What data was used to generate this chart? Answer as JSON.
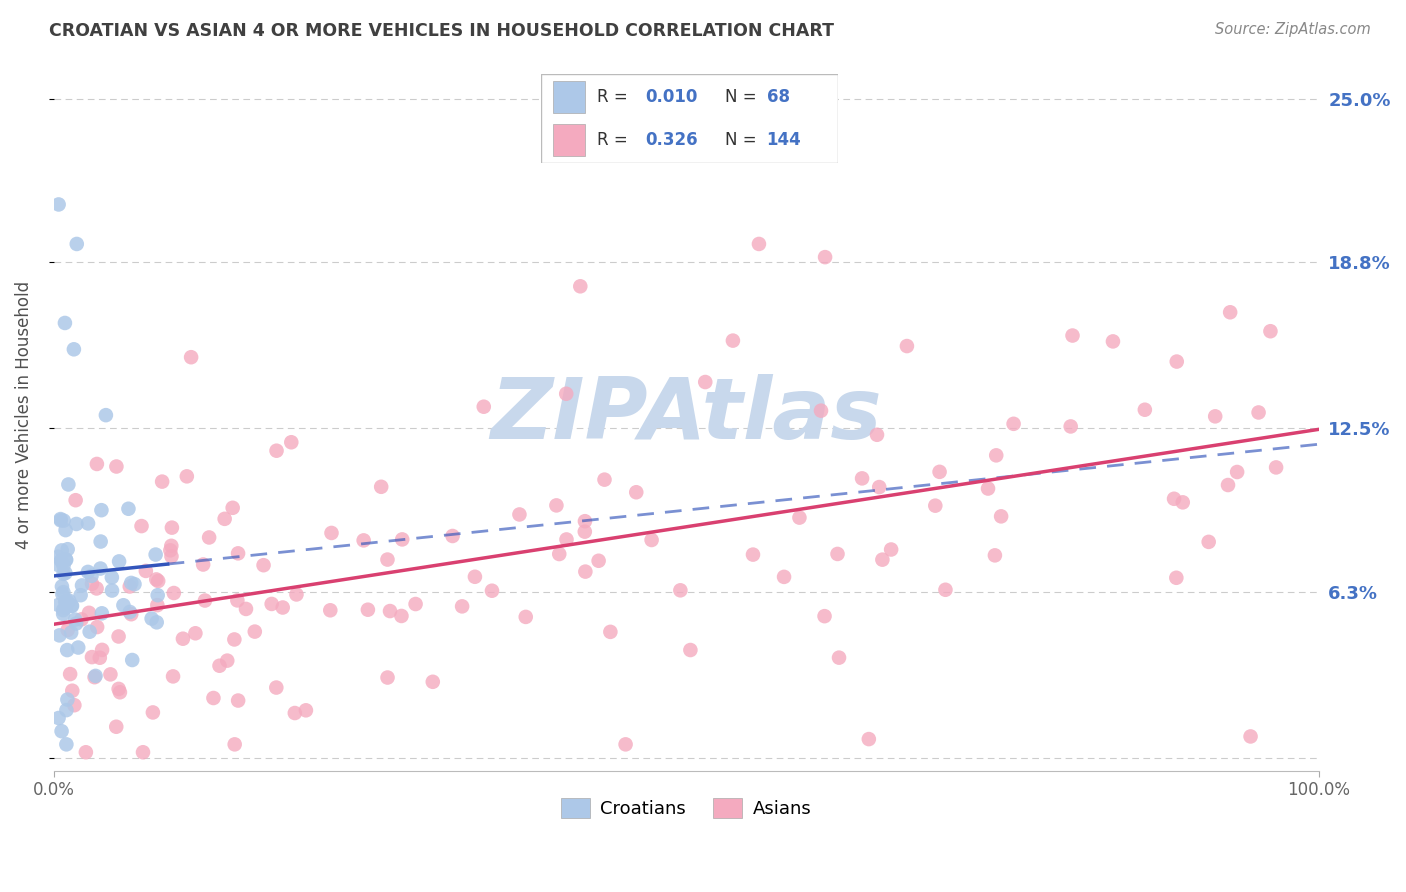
{
  "title": "CROATIAN VS ASIAN 4 OR MORE VEHICLES IN HOUSEHOLD CORRELATION CHART",
  "source": "Source: ZipAtlas.com",
  "ylabel": "4 or more Vehicles in Household",
  "xlim": [
    0,
    1
  ],
  "ylim": [
    -0.005,
    0.265
  ],
  "ytick_vals": [
    0.0,
    0.063,
    0.125,
    0.188,
    0.25
  ],
  "ytick_labels": [
    "",
    "6.3%",
    "12.5%",
    "18.8%",
    "25.0%"
  ],
  "croatian_color": "#adc8e8",
  "asian_color": "#f4aabf",
  "trendline_croatian_color": "#3355bb",
  "trendline_asian_color": "#d94070",
  "watermark_color": "#c8d8ec",
  "background_color": "#ffffff",
  "grid_color": "#cccccc",
  "title_color": "#404040",
  "axis_label_color": "#505050",
  "right_label_color": "#4472c4",
  "legend_r1": "0.010",
  "legend_n1": "68",
  "legend_r2": "0.326",
  "legend_n2": "144"
}
